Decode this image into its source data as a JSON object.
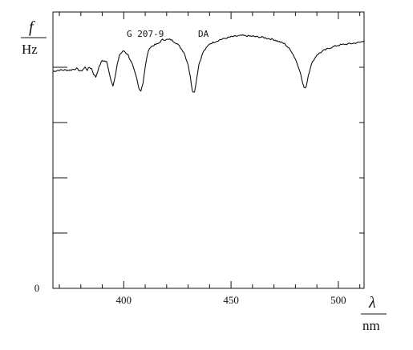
{
  "chart_data": {
    "type": "line",
    "annotations": [
      "G 207-9",
      "DA"
    ],
    "xlabel": "λ",
    "xunit": "nm",
    "ylabel": "f",
    "yunit": "Hz",
    "xlim": [
      367,
      512
    ],
    "ylim": [
      0,
      1
    ],
    "x_ticks": [
      400,
      450,
      500
    ],
    "y_ticks": [
      0
    ],
    "grid": false,
    "series": [
      {
        "x": [
          367,
          370,
          375,
          378,
          380,
          382,
          383,
          384,
          385,
          386,
          387,
          388,
          389,
          390,
          392,
          393,
          394,
          395,
          396,
          397,
          398,
          400,
          402,
          404,
          406,
          407,
          408,
          409,
          410,
          411,
          412,
          414,
          416,
          418,
          420,
          422,
          425,
          428,
          430,
          431,
          432,
          433,
          434,
          435,
          437,
          440,
          445,
          450,
          455,
          460,
          465,
          470,
          475,
          478,
          480,
          482,
          483,
          484,
          485,
          486,
          487,
          488,
          490,
          493,
          496,
          500,
          505,
          510,
          512
        ],
        "y": [
          0.785,
          0.79,
          0.79,
          0.795,
          0.785,
          0.8,
          0.79,
          0.8,
          0.795,
          0.775,
          0.765,
          0.79,
          0.81,
          0.825,
          0.82,
          0.79,
          0.755,
          0.735,
          0.765,
          0.81,
          0.845,
          0.86,
          0.845,
          0.81,
          0.76,
          0.725,
          0.715,
          0.745,
          0.8,
          0.845,
          0.87,
          0.88,
          0.885,
          0.9,
          0.9,
          0.9,
          0.885,
          0.855,
          0.81,
          0.765,
          0.715,
          0.71,
          0.76,
          0.81,
          0.855,
          0.885,
          0.9,
          0.91,
          0.915,
          0.912,
          0.908,
          0.9,
          0.885,
          0.86,
          0.83,
          0.79,
          0.755,
          0.725,
          0.73,
          0.77,
          0.8,
          0.82,
          0.845,
          0.86,
          0.87,
          0.88,
          0.885,
          0.89,
          0.895
        ]
      }
    ]
  }
}
